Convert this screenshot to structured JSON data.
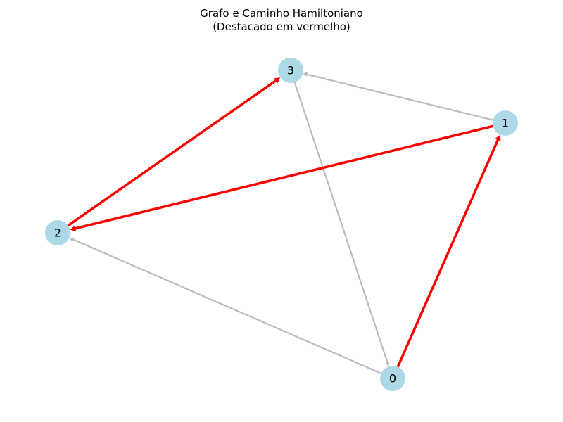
{
  "figure": {
    "title_line1": "Grafo e Caminho Hamiltoniano",
    "title_line2": "(Destacado em vermelho)"
  },
  "graph": {
    "node_color": "#add8e6",
    "default_edge_color": "#bbbbbb",
    "highlight_edge_color": "#ff0000",
    "nodes": [
      {
        "id": "0",
        "label": "0"
      },
      {
        "id": "1",
        "label": "1"
      },
      {
        "id": "2",
        "label": "2"
      },
      {
        "id": "3",
        "label": "3"
      }
    ],
    "edges": [
      {
        "from": "1",
        "to": "3",
        "highlighted": false
      },
      {
        "from": "3",
        "to": "0",
        "highlighted": false
      },
      {
        "from": "0",
        "to": "2",
        "highlighted": false
      },
      {
        "from": "0",
        "to": "1",
        "highlighted": true
      },
      {
        "from": "1",
        "to": "2",
        "highlighted": true
      },
      {
        "from": "2",
        "to": "3",
        "highlighted": true
      }
    ],
    "hamiltonian_path": [
      "0",
      "1",
      "2",
      "3"
    ]
  }
}
